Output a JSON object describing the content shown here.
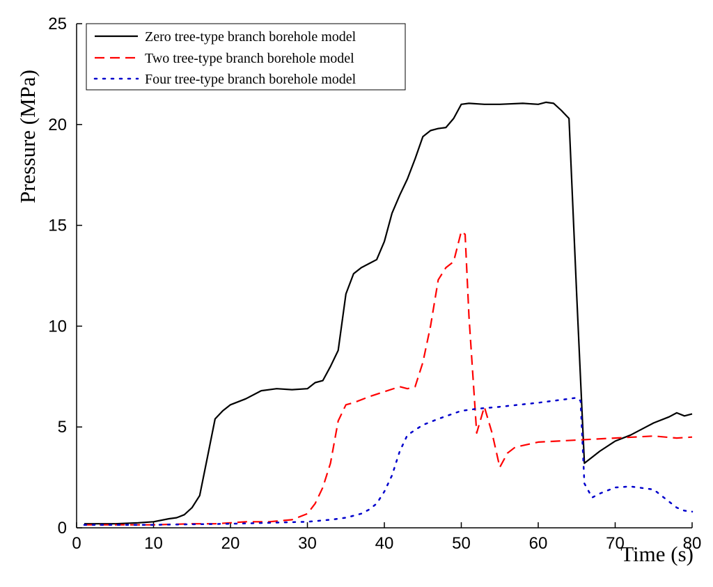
{
  "chart_data": {
    "type": "line",
    "xlabel": "Time (s)",
    "ylabel": "Pressure (MPa)",
    "xlim": [
      0,
      80
    ],
    "ylim": [
      0,
      25
    ],
    "xticks": [
      0,
      10,
      20,
      30,
      40,
      50,
      60,
      70,
      80
    ],
    "yticks": [
      0,
      5,
      10,
      15,
      20,
      25
    ],
    "grid": false,
    "legend_position": "top-left",
    "series": [
      {
        "name": "Zero tree-type branch borehole model",
        "color": "#000000",
        "style": "solid",
        "x": [
          1,
          5,
          8,
          10,
          12,
          13,
          14,
          15,
          16,
          17,
          18,
          19,
          20,
          22,
          24,
          26,
          28,
          30,
          31,
          32,
          33,
          34,
          35,
          36,
          37,
          38,
          39,
          40,
          41,
          42,
          43,
          44,
          45,
          46,
          47,
          48,
          49,
          50,
          51,
          53,
          55,
          58,
          60,
          61,
          62,
          63,
          64,
          65,
          66,
          67,
          68,
          70,
          72,
          74,
          75,
          77,
          78,
          79,
          80
        ],
        "y": [
          0.2,
          0.2,
          0.25,
          0.3,
          0.45,
          0.5,
          0.65,
          1.0,
          1.6,
          3.5,
          5.4,
          5.8,
          6.1,
          6.4,
          6.8,
          6.9,
          6.85,
          6.9,
          7.2,
          7.3,
          8.0,
          8.8,
          11.6,
          12.6,
          12.9,
          13.1,
          13.3,
          14.2,
          15.6,
          16.5,
          17.3,
          18.3,
          19.4,
          19.7,
          19.8,
          19.85,
          20.3,
          21.0,
          21.05,
          21.0,
          21.0,
          21.05,
          21.0,
          21.1,
          21.05,
          20.7,
          20.3,
          11.5,
          3.2,
          3.5,
          3.8,
          4.3,
          4.6,
          5.0,
          5.2,
          5.5,
          5.7,
          5.55,
          5.65
        ]
      },
      {
        "name": "Two tree-type branch borehole model",
        "color": "#ff0000",
        "style": "dashed",
        "x": [
          1,
          5,
          10,
          15,
          18,
          20,
          22,
          25,
          28,
          30,
          31,
          32,
          33,
          34,
          35,
          36,
          38,
          40,
          42,
          43,
          44,
          45,
          46,
          47,
          48,
          49,
          50,
          50.5,
          51,
          52,
          53,
          54,
          55,
          56,
          57,
          60,
          65,
          70,
          75,
          78,
          80
        ],
        "y": [
          0.15,
          0.15,
          0.15,
          0.2,
          0.2,
          0.25,
          0.3,
          0.3,
          0.4,
          0.7,
          1.2,
          2.0,
          3.2,
          5.3,
          6.1,
          6.2,
          6.5,
          6.75,
          7.0,
          6.9,
          7.0,
          8.2,
          10.0,
          12.3,
          12.9,
          13.2,
          14.7,
          14.55,
          10.5,
          4.7,
          6.0,
          4.7,
          3.0,
          3.7,
          4.0,
          4.25,
          4.35,
          4.45,
          4.55,
          4.45,
          4.5
        ]
      },
      {
        "name": "Four tree-type branch borehole model",
        "color": "#0000cc",
        "style": "dotted",
        "x": [
          1,
          10,
          20,
          25,
          30,
          33,
          35,
          37,
          38,
          39,
          40,
          41,
          42,
          43,
          44,
          45,
          47,
          50,
          52,
          55,
          60,
          62,
          64,
          65,
          65.5,
          66,
          67,
          68,
          70,
          72,
          73,
          75,
          76,
          78,
          79,
          80
        ],
        "y": [
          0.15,
          0.15,
          0.2,
          0.25,
          0.3,
          0.4,
          0.5,
          0.7,
          0.9,
          1.2,
          1.8,
          2.6,
          3.8,
          4.6,
          4.85,
          5.1,
          5.4,
          5.8,
          5.9,
          6.0,
          6.2,
          6.3,
          6.4,
          6.45,
          6.3,
          2.2,
          1.5,
          1.7,
          2.0,
          2.05,
          2.0,
          1.9,
          1.6,
          1.0,
          0.85,
          0.8
        ]
      }
    ]
  }
}
